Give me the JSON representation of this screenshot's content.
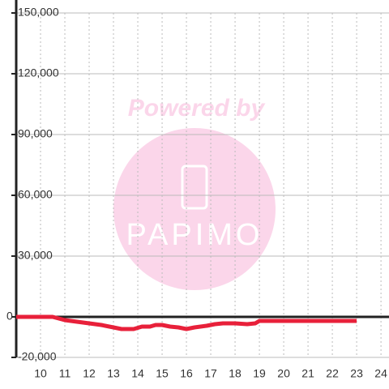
{
  "chart_data": {
    "type": "line",
    "x": [
      9,
      10.5,
      11,
      11.5,
      12,
      12.5,
      13,
      13.33,
      13.83,
      14.17,
      14.5,
      14.73,
      15,
      15.33,
      15.67,
      16,
      16.33,
      16.83,
      17.17,
      17.5,
      18,
      18.5,
      18.83,
      19,
      20,
      23
    ],
    "series": [
      {
        "color": "#e8203a",
        "values": [
          0,
          0,
          -1600,
          -2400,
          -3200,
          -4000,
          -5200,
          -6000,
          -6000,
          -4800,
          -4800,
          -4000,
          -4000,
          -4800,
          -5200,
          -6000,
          -5200,
          -4400,
          -3600,
          -3200,
          -3200,
          -3600,
          -3200,
          -2000,
          -2000,
          -2000
        ]
      }
    ],
    "xlim": [
      9,
      24.33
    ],
    "xticks": [
      10,
      11,
      12,
      13,
      14,
      15,
      16,
      17,
      18,
      19,
      20,
      21,
      22,
      23,
      24
    ],
    "ylim": [
      -20000,
      150000
    ],
    "yticks": [
      {
        "value": -20000,
        "label": "-20,000"
      },
      0,
      {
        "value": 30000,
        "label": "30,000"
      },
      {
        "value": 60000,
        "label": "60,000"
      },
      {
        "value": 90000,
        "label": "90,000"
      },
      {
        "value": 120000,
        "label": "120,000"
      },
      {
        "value": 150000,
        "label": "150,000"
      }
    ],
    "grid": true
  },
  "watermark": {
    "text": "Powered by",
    "logo": "PAPIMO"
  }
}
